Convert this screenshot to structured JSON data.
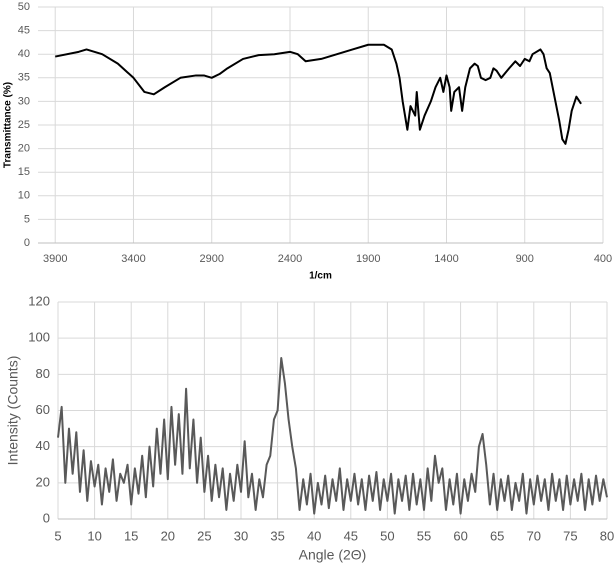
{
  "chart_data": [
    {
      "type": "line",
      "x_label": "1/cm",
      "y_label": "Transmittance (%)",
      "color": "#000000",
      "xlim": [
        4010,
        400
      ],
      "ylim": [
        0,
        50
      ],
      "xticks": [
        3900,
        3400,
        2900,
        2400,
        1900,
        1400,
        900,
        400
      ],
      "yticks": [
        0,
        5,
        10,
        15,
        20,
        25,
        30,
        35,
        40,
        45,
        50
      ],
      "grid": true,
      "x": [
        3900,
        3750,
        3700,
        3600,
        3500,
        3400,
        3330,
        3270,
        3200,
        3100,
        3000,
        2950,
        2900,
        2850,
        2800,
        2700,
        2600,
        2500,
        2400,
        2350,
        2300,
        2200,
        2100,
        2000,
        1900,
        1800,
        1750,
        1720,
        1700,
        1680,
        1650,
        1630,
        1600,
        1590,
        1570,
        1540,
        1500,
        1470,
        1440,
        1420,
        1400,
        1380,
        1370,
        1350,
        1320,
        1300,
        1280,
        1250,
        1220,
        1200,
        1180,
        1150,
        1120,
        1100,
        1080,
        1050,
        1000,
        960,
        930,
        900,
        870,
        850,
        800,
        780,
        760,
        740,
        710,
        680,
        660,
        640,
        620,
        600,
        570,
        540
      ],
      "values": [
        39.5,
        40.5,
        41,
        40,
        38,
        35,
        32,
        31.5,
        33,
        35,
        35.5,
        35.5,
        35,
        35.8,
        37,
        39,
        39.8,
        40,
        40.5,
        40,
        38.5,
        39,
        40,
        41,
        42,
        42,
        41,
        38,
        35,
        30,
        24,
        29,
        27,
        32,
        24,
        27,
        30,
        33,
        35,
        32,
        35.5,
        33,
        28,
        32,
        33,
        28,
        33,
        37,
        38,
        37.5,
        35,
        34.5,
        35,
        37,
        36.5,
        35,
        37,
        38.5,
        37.5,
        39,
        38.5,
        40,
        41,
        40,
        37,
        36,
        31,
        26,
        22,
        21,
        24,
        28,
        31,
        29.5
      ]
    },
    {
      "type": "line",
      "x_label": "Angle (2Θ)",
      "y_label": "Intensity (Counts)",
      "color": "#595959",
      "xlim": [
        5,
        80
      ],
      "ylim": [
        0,
        120
      ],
      "xticks": [
        5,
        10,
        15,
        20,
        25,
        30,
        35,
        40,
        45,
        50,
        55,
        60,
        65,
        70,
        75,
        80
      ],
      "yticks": [
        0,
        20,
        40,
        60,
        80,
        100,
        120
      ],
      "grid": true,
      "x": [
        5,
        5.5,
        6,
        6.5,
        7,
        7.5,
        8,
        8.5,
        9,
        9.5,
        10,
        10.5,
        11,
        11.5,
        12,
        12.5,
        13,
        13.5,
        14,
        14.5,
        15,
        15.5,
        16,
        16.5,
        17,
        17.5,
        18,
        18.5,
        19,
        19.5,
        20,
        20.5,
        21,
        21.5,
        22,
        22.5,
        23,
        23.5,
        24,
        24.5,
        25,
        25.5,
        26,
        26.5,
        27,
        27.5,
        28,
        28.5,
        29,
        29.5,
        30,
        30.5,
        31,
        31.5,
        32,
        32.5,
        33,
        33.5,
        34,
        34.5,
        35,
        35.5,
        36,
        36.5,
        37,
        37.5,
        38,
        38.5,
        39,
        39.5,
        40,
        40.5,
        41,
        41.5,
        42,
        42.5,
        43,
        43.5,
        44,
        44.5,
        45,
        45.5,
        46,
        46.5,
        47,
        47.5,
        48,
        48.5,
        49,
        49.5,
        50,
        50.5,
        51,
        51.5,
        52,
        52.5,
        53,
        53.5,
        54,
        54.5,
        55,
        55.5,
        56,
        56.5,
        57,
        57.5,
        58,
        58.5,
        59,
        59.5,
        60,
        60.5,
        61,
        61.5,
        62,
        62.5,
        63,
        63.5,
        64,
        64.5,
        65,
        65.5,
        66,
        66.5,
        67,
        67.5,
        68,
        68.5,
        69,
        69.5,
        70,
        70.5,
        71,
        71.5,
        72,
        72.5,
        73,
        73.5,
        74,
        74.5,
        75,
        75.5,
        76,
        76.5,
        77,
        77.5,
        78,
        78.5,
        79,
        79.5,
        80
      ],
      "values": [
        45,
        62,
        20,
        50,
        25,
        48,
        15,
        38,
        10,
        32,
        18,
        30,
        8,
        28,
        15,
        33,
        10,
        25,
        20,
        30,
        8,
        28,
        14,
        35,
        12,
        40,
        18,
        50,
        25,
        55,
        22,
        62,
        30,
        58,
        25,
        72,
        28,
        55,
        20,
        45,
        15,
        35,
        10,
        30,
        12,
        28,
        5,
        25,
        10,
        30,
        15,
        43,
        12,
        25,
        5,
        22,
        12,
        30,
        35,
        55,
        60,
        89,
        75,
        55,
        40,
        28,
        5,
        22,
        8,
        25,
        3,
        20,
        8,
        24,
        6,
        22,
        10,
        28,
        5,
        22,
        10,
        25,
        8,
        22,
        5,
        24,
        10,
        26,
        5,
        22,
        10,
        25,
        3,
        22,
        10,
        24,
        5,
        25,
        8,
        22,
        5,
        28,
        10,
        35,
        20,
        28,
        5,
        22,
        8,
        25,
        3,
        22,
        10,
        25,
        15,
        40,
        47,
        30,
        8,
        25,
        5,
        22,
        10,
        24,
        5,
        20,
        10,
        25,
        3,
        22,
        8,
        24,
        10,
        22,
        5,
        25,
        10,
        22,
        5,
        24,
        8,
        22,
        10,
        25,
        5,
        22,
        8,
        24,
        10,
        22,
        12
      ]
    }
  ]
}
